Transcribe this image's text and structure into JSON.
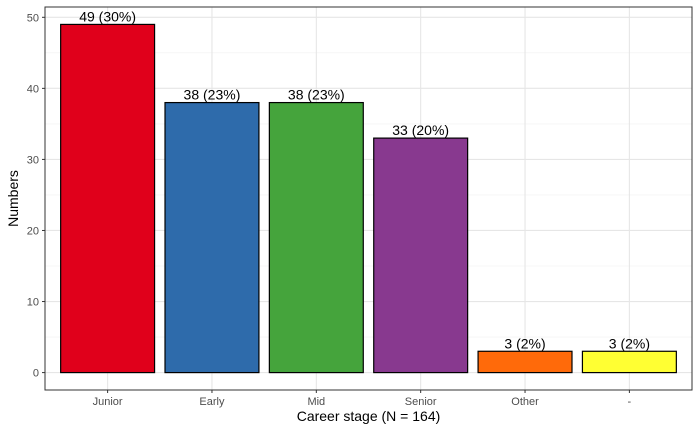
{
  "chart_data": {
    "type": "bar",
    "title": "",
    "xlabel": "Career stage (N = 164)",
    "ylabel": "Numbers",
    "categories": [
      "Junior",
      "Early",
      "Mid",
      "Senior",
      "Other",
      "-"
    ],
    "values": [
      49,
      38,
      38,
      33,
      3,
      3
    ],
    "data_labels": [
      "49 (30%)",
      "38 (23%)",
      "38 (23%)",
      "33 (20%)",
      "3 (2%)",
      "3 (2%)"
    ],
    "colors": [
      "#E0001B",
      "#2E6BAB",
      "#45A43C",
      "#88398F",
      "#FF6A0A",
      "#FFFF33"
    ],
    "yticks": [
      0,
      10,
      20,
      30,
      40,
      50
    ],
    "ylim": [
      -2.45,
      51.45
    ],
    "grid": true,
    "legend": "none"
  }
}
